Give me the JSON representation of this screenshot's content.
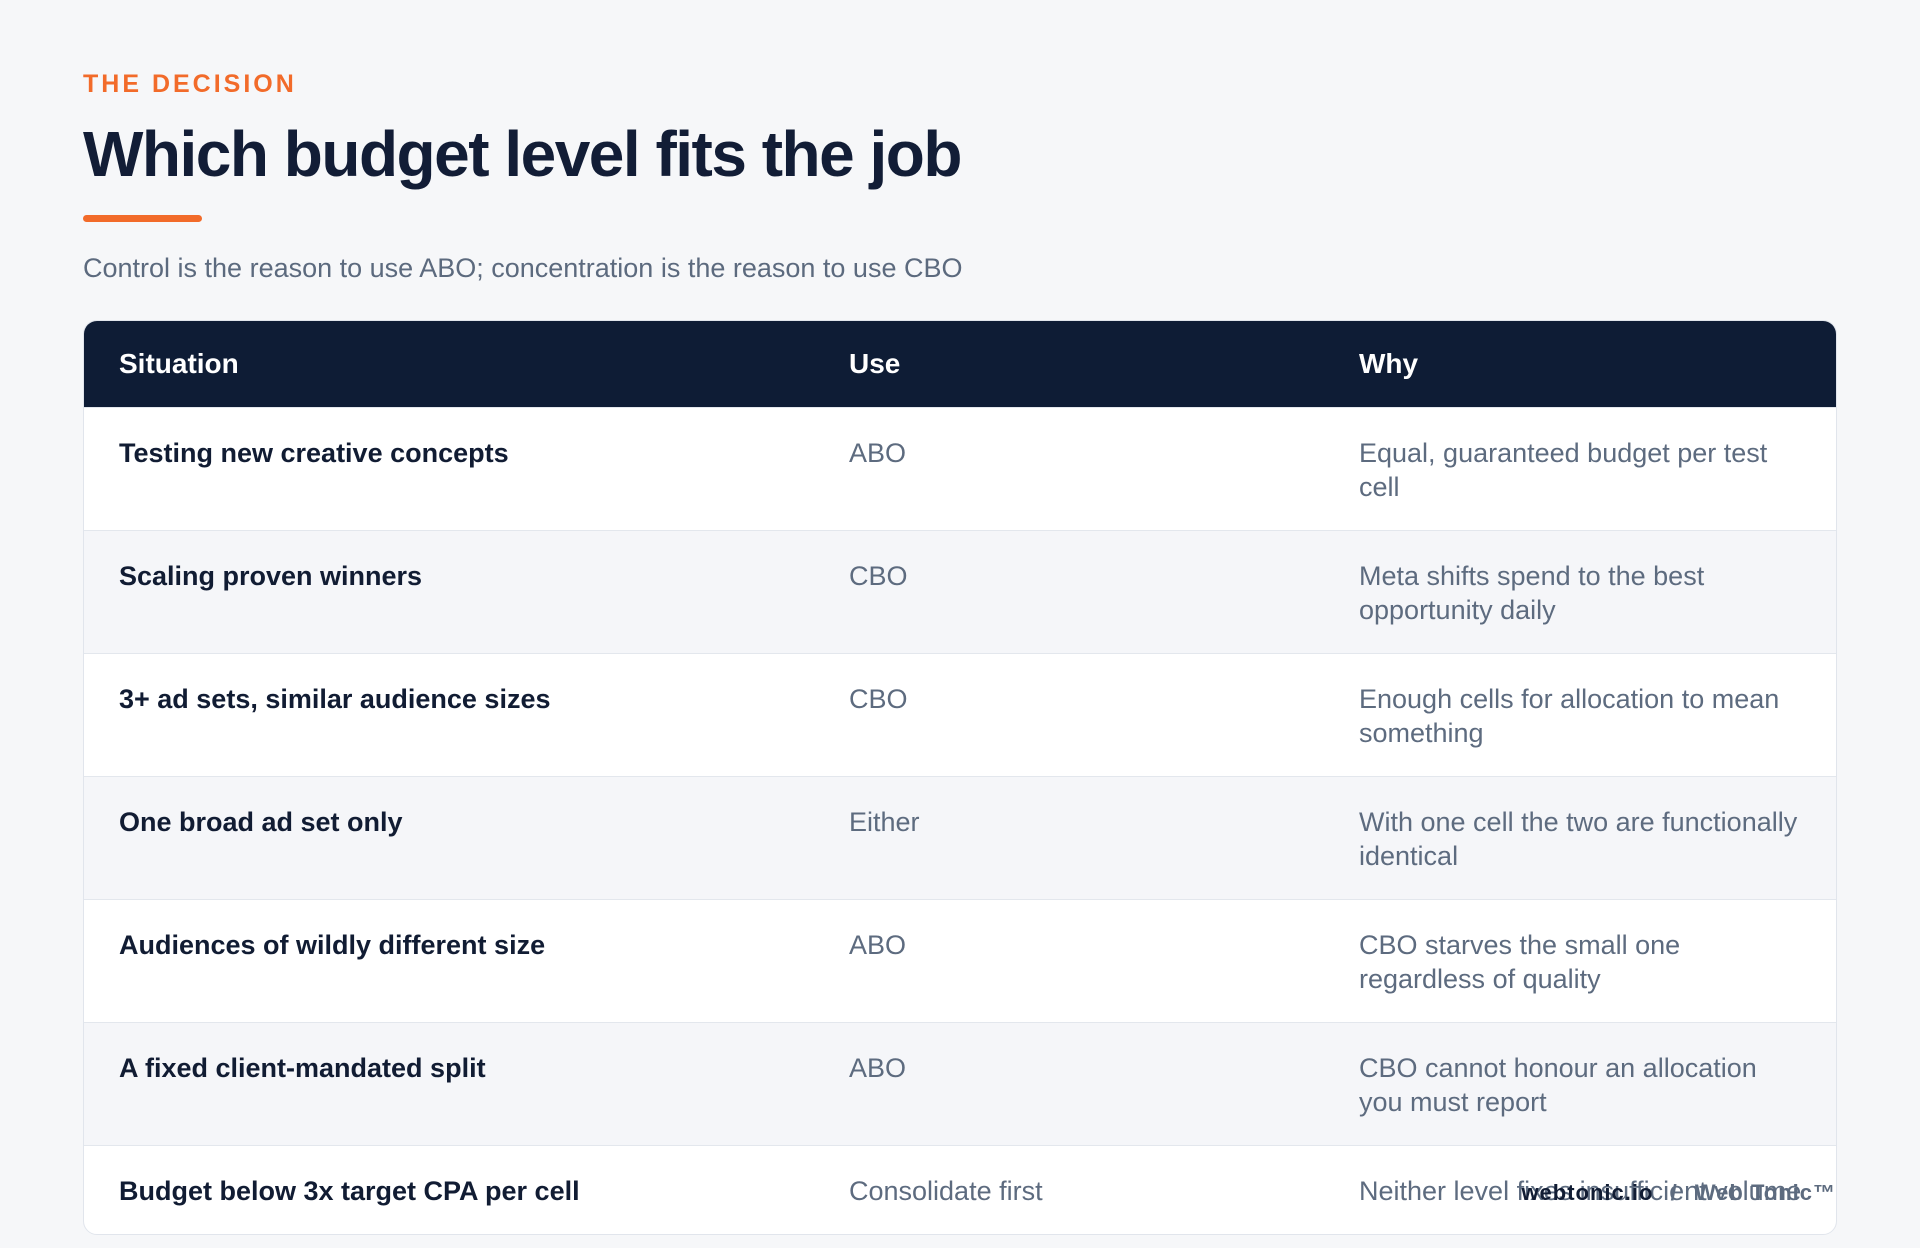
{
  "eyebrow": "THE DECISION",
  "title": "Which budget level fits the job",
  "subtitle": "Control is the reason to use ABO; concentration is the reason to use CBO",
  "table": {
    "headers": [
      "Situation",
      "Use",
      "Why"
    ],
    "rows": [
      {
        "situation": "Testing new creative concepts",
        "use": "ABO",
        "why": "Equal, guaranteed budget per test cell"
      },
      {
        "situation": "Scaling proven winners",
        "use": "CBO",
        "why": "Meta shifts spend to the best opportunity daily"
      },
      {
        "situation": "3+ ad sets, similar audience sizes",
        "use": "CBO",
        "why": "Enough cells for allocation to mean something"
      },
      {
        "situation": "One broad ad set only",
        "use": "Either",
        "why": "With one cell the two are functionally identical"
      },
      {
        "situation": "Audiences of wildly different size",
        "use": "ABO",
        "why": "CBO starves the small one regardless of quality"
      },
      {
        "situation": "A fixed client-mandated split",
        "use": "ABO",
        "why": "CBO cannot honour an allocation you must report"
      },
      {
        "situation": "Budget below 3x target CPA per cell",
        "use": "Consolidate first",
        "why": "Neither level fixes insufficient volume"
      }
    ]
  },
  "footer": {
    "domain": "webtonic.io",
    "separator": "/",
    "brand": "Web Tonic™"
  },
  "colors": {
    "accent": "#f26b2a",
    "header_bg": "#0e1c35",
    "heading_text": "#121d36",
    "muted_text": "#5d6b7f",
    "page_bg": "#f6f7f9"
  }
}
